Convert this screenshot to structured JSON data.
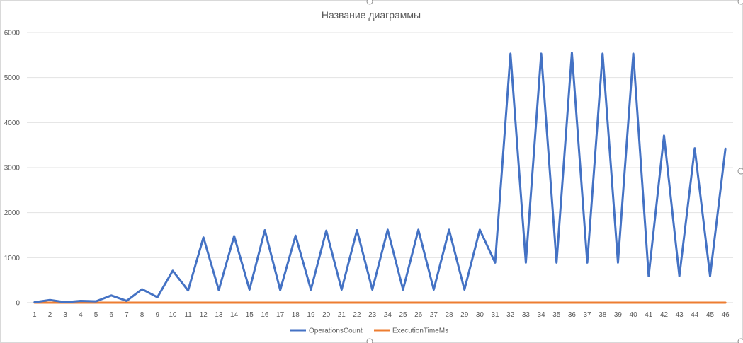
{
  "chart_data": {
    "type": "line",
    "title": "Название диаграммы",
    "xlabel": "",
    "ylabel": "",
    "ylim": [
      0,
      6000
    ],
    "yticks": [
      0,
      1000,
      2000,
      3000,
      4000,
      5000,
      6000
    ],
    "categories": [
      "1",
      "2",
      "3",
      "4",
      "5",
      "6",
      "7",
      "8",
      "9",
      "10",
      "11",
      "12",
      "13",
      "14",
      "15",
      "16",
      "17",
      "18",
      "19",
      "20",
      "21",
      "22",
      "23",
      "24",
      "25",
      "26",
      "27",
      "28",
      "29",
      "30",
      "31",
      "32",
      "33",
      "34",
      "35",
      "36",
      "37",
      "38",
      "39",
      "40",
      "41",
      "42",
      "43",
      "44",
      "45",
      "46"
    ],
    "grid": true,
    "legend_position": "bottom",
    "series": [
      {
        "name": "OperationsCount",
        "color": "#4472C4",
        "values": [
          10,
          60,
          10,
          40,
          30,
          160,
          40,
          300,
          120,
          710,
          270,
          1450,
          280,
          1480,
          290,
          1610,
          280,
          1490,
          290,
          1600,
          290,
          1610,
          290,
          1620,
          290,
          1620,
          290,
          1620,
          290,
          1620,
          890,
          5530,
          890,
          5530,
          890,
          5550,
          890,
          5530,
          890,
          5530,
          590,
          3710,
          590,
          3430,
          590,
          3420
        ]
      },
      {
        "name": "ExecutionTimeMs",
        "color": "#ED7D31",
        "values": [
          0,
          0,
          0,
          0,
          0,
          0,
          0,
          0,
          0,
          0,
          0,
          0,
          0,
          0,
          0,
          0,
          0,
          0,
          0,
          0,
          0,
          0,
          0,
          0,
          0,
          0,
          0,
          0,
          0,
          0,
          0,
          0,
          0,
          0,
          0,
          0,
          0,
          0,
          0,
          0,
          0,
          0,
          0,
          0,
          0,
          0
        ]
      }
    ]
  }
}
